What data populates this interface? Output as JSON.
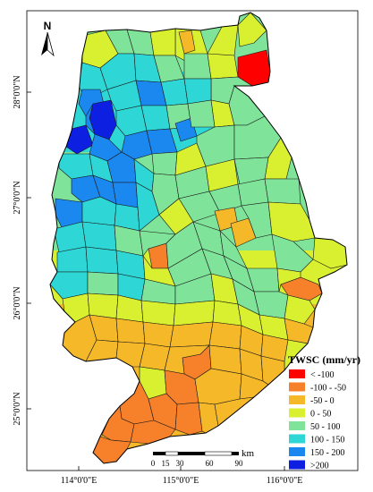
{
  "map": {
    "north_label": "N",
    "lat_labels": [
      "28°0'0\"N",
      "27°0'0\"N",
      "26°0'0\"N",
      "25°0'0\"N"
    ],
    "lon_labels": [
      "114°0'0\"E",
      "115°0'0\"E",
      "116°0'0\"E"
    ],
    "colors": {
      "outline": "#1a1a1a",
      "frame": "#000000"
    }
  },
  "legend": {
    "title": "TWSC (mm/yr)",
    "classes": [
      {
        "label": "< -100",
        "color": "#ff0000"
      },
      {
        "label": "-100 - -50",
        "color": "#f7802a"
      },
      {
        "label": "-50 - 0",
        "color": "#f5b829"
      },
      {
        "label": "0 - 50",
        "color": "#d8f02f"
      },
      {
        "label": "50 - 100",
        "color": "#7fe39a"
      },
      {
        "label": "100 - 150",
        "color": "#2fd6d6"
      },
      {
        "label": "150 - 200",
        "color": "#1a88ef"
      },
      {
        "label": ">200",
        "color": "#0d1fe0"
      }
    ]
  },
  "scale_bar": {
    "unit": "km",
    "labels": [
      "0",
      "15",
      "30",
      "60",
      "90"
    ]
  }
}
